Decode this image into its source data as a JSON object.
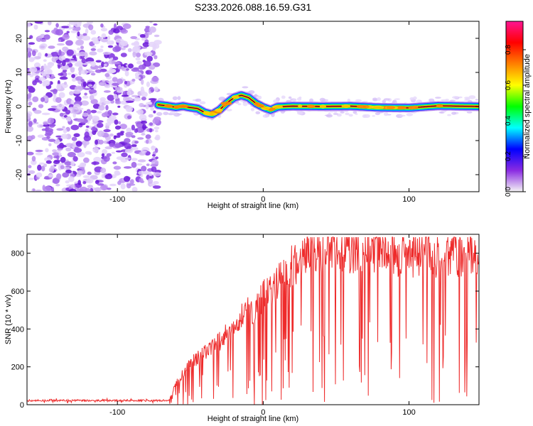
{
  "title": "S233.2026.088.16.59.G31",
  "chart_data": [
    {
      "type": "heatmap",
      "xlabel": "Height of straight line (km)",
      "ylabel": "Frequency (Hz)",
      "xlim": [
        -162,
        148
      ],
      "ylim": [
        -25,
        25
      ],
      "xticks": [
        -100,
        0,
        100
      ],
      "xtick_labels": [
        "-100",
        "0",
        "100"
      ],
      "yticks": [
        -20,
        -10,
        0,
        10,
        20
      ],
      "ytick_labels": [
        "-20",
        "-10",
        "0",
        "10",
        "20"
      ],
      "noise_region_x": [
        -162,
        -72
      ],
      "ridge": {
        "x": [
          -72,
          -66,
          -60,
          -55,
          -50,
          -45,
          -40,
          -35,
          -30,
          -25,
          -20,
          -15,
          -10,
          -5,
          0,
          5,
          10,
          20,
          40,
          60,
          80,
          100,
          120,
          148
        ],
        "freq": [
          0.5,
          0.2,
          -0.2,
          0.1,
          -0.3,
          -0.6,
          -1.8,
          -2.3,
          -1.0,
          1.0,
          2.6,
          3.3,
          2.6,
          0.9,
          -0.2,
          -1.0,
          -0.1,
          0.1,
          0.0,
          0.1,
          -0.3,
          -0.4,
          0.2,
          0.0
        ]
      },
      "colorbar": {
        "label": "Normalized spectral amplitude",
        "ticks": [
          0.0,
          0.2,
          0.4,
          0.6,
          0.8
        ],
        "tick_labels": [
          "0.0",
          "0.2",
          "0.4",
          "0.6",
          "0.8"
        ],
        "range": [
          0,
          0.96
        ],
        "colors": [
          "#f5f5f5",
          "#8a2be2",
          "#0000ff",
          "#00ffff",
          "#00ff00",
          "#ffff00",
          "#ff8000",
          "#ff0000",
          "#ff1493"
        ]
      }
    },
    {
      "type": "line",
      "xlabel": "Height of straight line (km)",
      "ylabel": "SNR (10 * v/v)",
      "xlim": [
        -162,
        148
      ],
      "ylim": [
        0,
        900
      ],
      "xticks": [
        -100,
        0,
        100
      ],
      "xtick_labels": [
        "-100",
        "0",
        "100"
      ],
      "yticks": [
        0,
        200,
        400,
        600,
        800
      ],
      "ytick_labels": [
        "0",
        "200",
        "400",
        "600",
        "800"
      ],
      "line_color": "#ee2b2b",
      "envelope": {
        "x": [
          -162,
          -65,
          -60,
          -55,
          -50,
          -45,
          -40,
          -35,
          -30,
          -25,
          -20,
          -15,
          -10,
          -5,
          0,
          5,
          10,
          15,
          20,
          25,
          30,
          35,
          40,
          50,
          60,
          80,
          100,
          120,
          148
        ],
        "mean": [
          22,
          22,
          100,
          160,
          200,
          240,
          270,
          300,
          320,
          360,
          400,
          440,
          470,
          500,
          540,
          580,
          610,
          650,
          700,
          730,
          760,
          780,
          790,
          790,
          780,
          770,
          760,
          755,
          760
        ],
        "spread": [
          10,
          10,
          40,
          60,
          70,
          80,
          90,
          100,
          110,
          120,
          130,
          150,
          170,
          180,
          190,
          200,
          210,
          220,
          230,
          240,
          250,
          260,
          270,
          270,
          270,
          260,
          260,
          250,
          250
        ]
      }
    }
  ]
}
